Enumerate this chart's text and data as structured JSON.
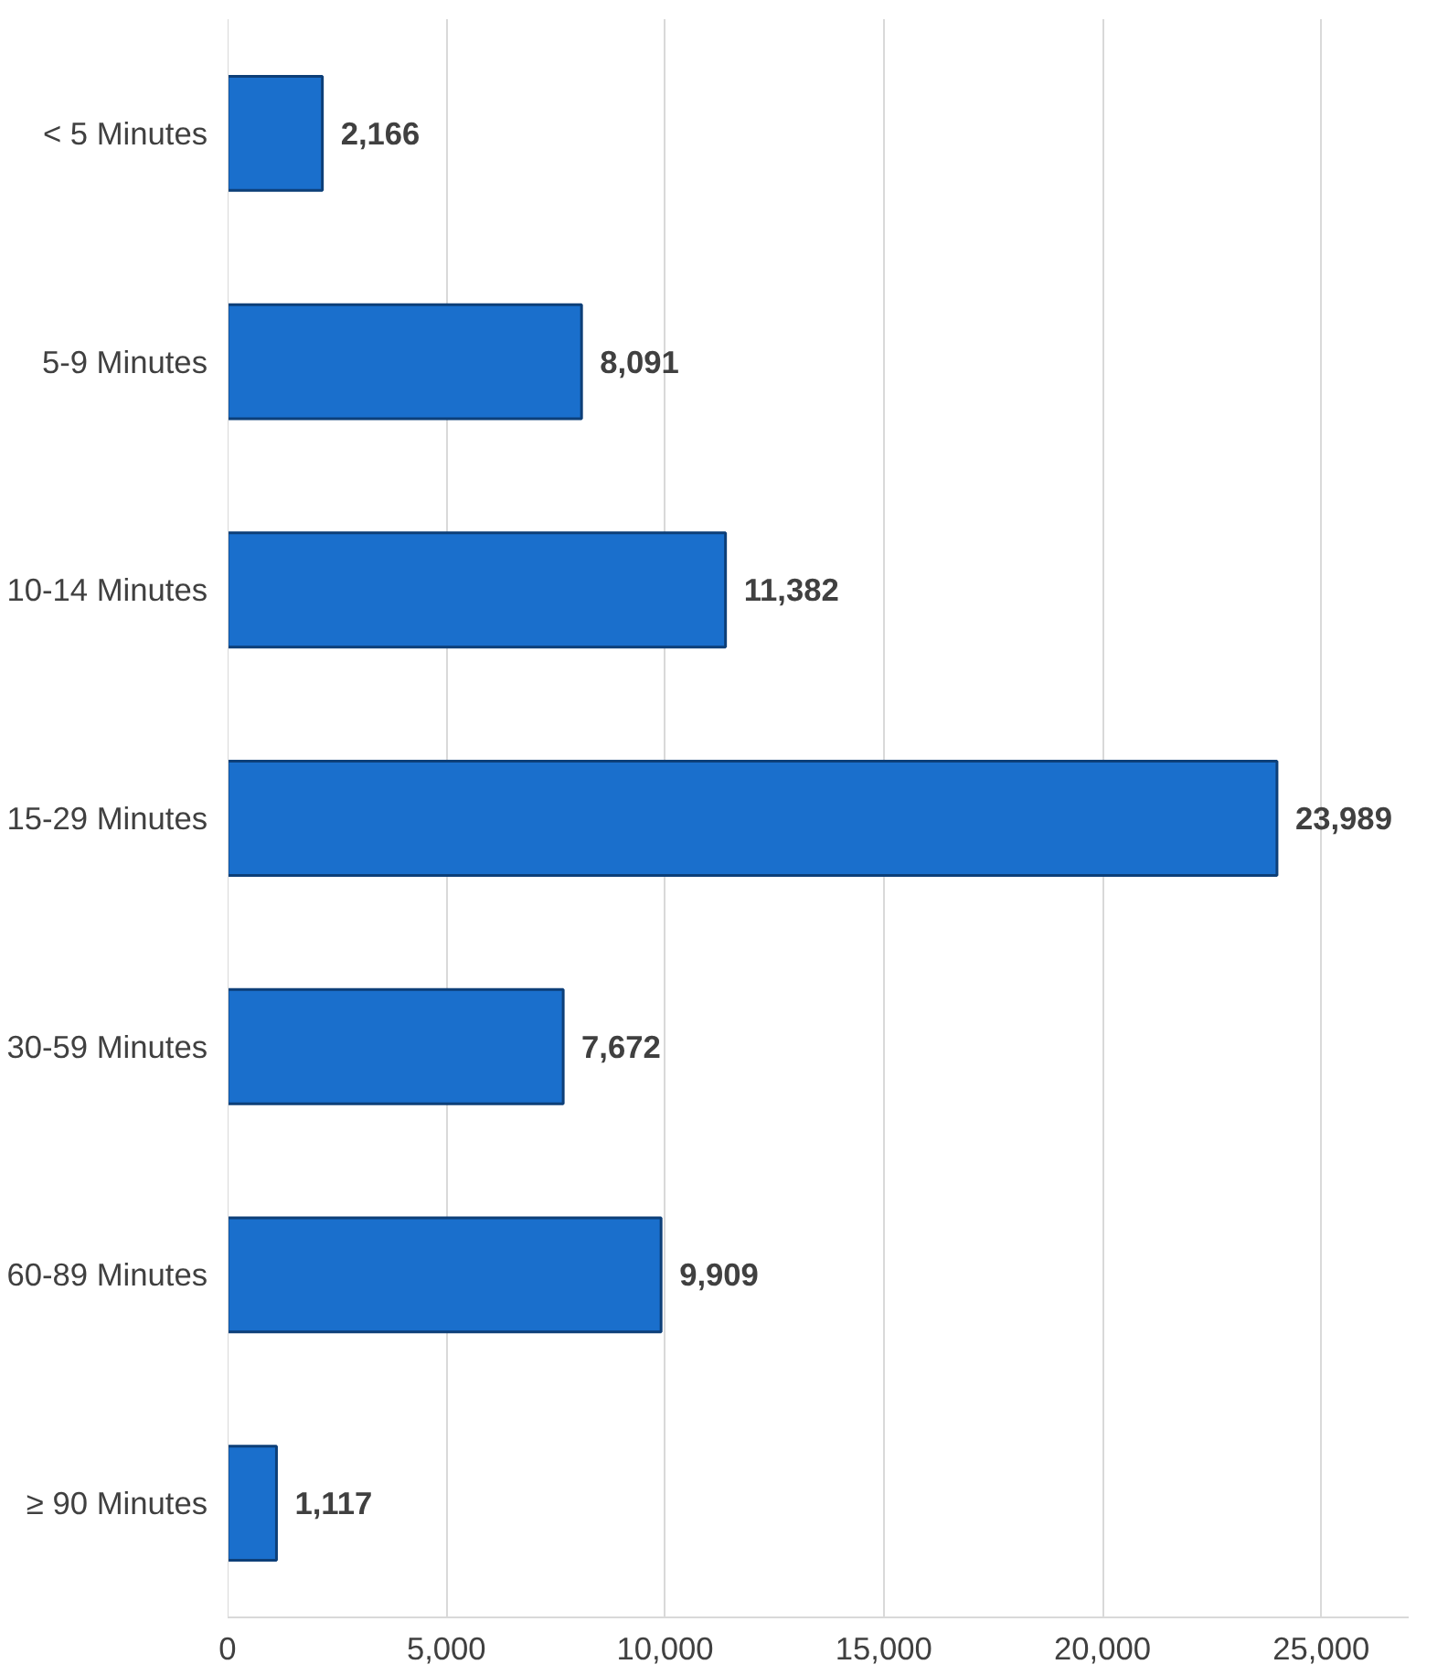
{
  "chart_data": {
    "type": "bar",
    "orientation": "horizontal",
    "categories": [
      "< 5 Minutes",
      "5-9 Minutes",
      "10-14 Minutes",
      "15-29 Minutes",
      "30-59 Minutes",
      "60-89 Minutes",
      "≥ 90 Minutes"
    ],
    "values": [
      2166,
      8091,
      11382,
      23989,
      7672,
      9909,
      1117
    ],
    "color": "#1a6fcc",
    "xlim": [
      0,
      27000
    ],
    "xticks": [
      {
        "value": 0,
        "label": "0"
      },
      {
        "value": 5000,
        "label": "5,000"
      },
      {
        "value": 10000,
        "label": "10,000"
      },
      {
        "value": 15000,
        "label": "15,000"
      },
      {
        "value": 20000,
        "label": "20,000"
      },
      {
        "value": 25000,
        "label": "25,000"
      }
    ],
    "value_labels": [
      "2,166",
      "8,091",
      "11,382",
      "23,989",
      "7,672",
      "9,909",
      "1,117"
    ],
    "grid": "x"
  }
}
